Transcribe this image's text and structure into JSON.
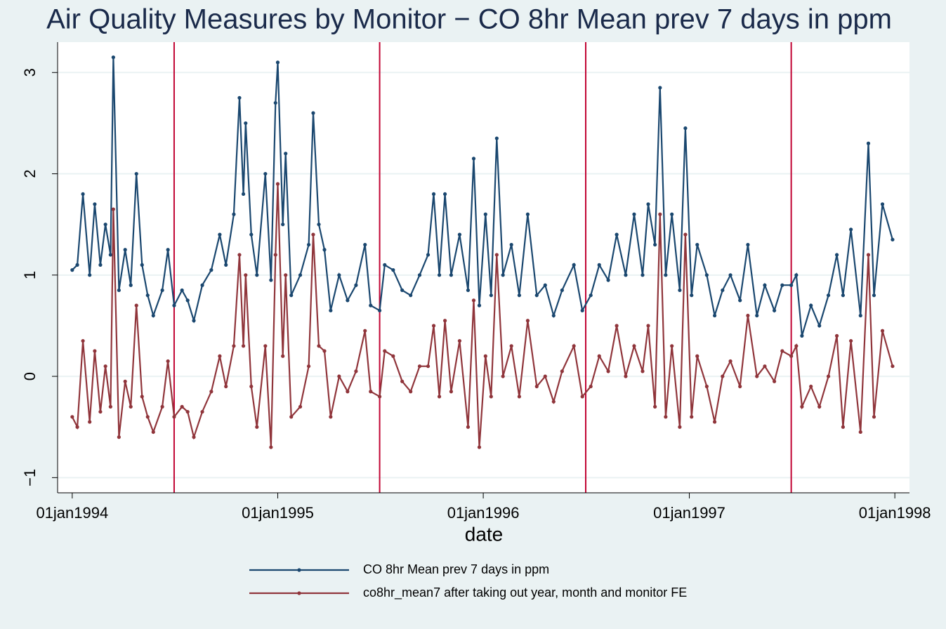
{
  "chart_data": {
    "type": "line",
    "title": "Air Quality Measures by Monitor − CO 8hr Mean prev 7 days in ppm",
    "x_label": "date",
    "x": [
      "1994-01-01",
      "1994-01-10",
      "1994-01-20",
      "1994-02-01",
      "1994-02-10",
      "1994-02-20",
      "1994-03-01",
      "1994-03-10",
      "1994-03-15",
      "1994-03-25",
      "1994-04-05",
      "1994-04-15",
      "1994-04-25",
      "1994-05-05",
      "1994-05-15",
      "1994-05-25",
      "1994-06-10",
      "1994-06-20",
      "1994-07-01",
      "1994-07-15",
      "1994-07-25",
      "1994-08-05",
      "1994-08-20",
      "1994-09-05",
      "1994-09-20",
      "1994-10-01",
      "1994-10-15",
      "1994-10-25",
      "1994-11-01",
      "1994-11-05",
      "1994-11-15",
      "1994-11-25",
      "1994-12-10",
      "1994-12-20",
      "1994-12-28",
      "1995-01-01",
      "1995-01-10",
      "1995-01-15",
      "1995-01-25",
      "1995-02-10",
      "1995-02-25",
      "1995-03-05",
      "1995-03-15",
      "1995-03-25",
      "1995-04-05",
      "1995-04-20",
      "1995-05-05",
      "1995-05-20",
      "1995-06-05",
      "1995-06-15",
      "1995-07-01",
      "1995-07-10",
      "1995-07-25",
      "1995-08-10",
      "1995-08-25",
      "1995-09-10",
      "1995-09-25",
      "1995-10-05",
      "1995-10-15",
      "1995-10-25",
      "1995-11-05",
      "1995-11-20",
      "1995-12-05",
      "1995-12-15",
      "1995-12-25",
      "1996-01-05",
      "1996-01-15",
      "1996-01-25",
      "1996-02-05",
      "1996-02-20",
      "1996-03-05",
      "1996-03-20",
      "1996-04-05",
      "1996-04-20",
      "1996-05-05",
      "1996-05-20",
      "1996-06-10",
      "1996-06-25",
      "1996-07-10",
      "1996-07-25",
      "1996-08-10",
      "1996-08-25",
      "1996-09-10",
      "1996-09-25",
      "1996-10-10",
      "1996-10-20",
      "1996-11-01",
      "1996-11-10",
      "1996-11-20",
      "1996-12-01",
      "1996-12-15",
      "1996-12-25",
      "1997-01-05",
      "1997-01-15",
      "1997-02-01",
      "1997-02-15",
      "1997-03-01",
      "1997-03-15",
      "1997-04-01",
      "1997-04-15",
      "1997-05-01",
      "1997-05-15",
      "1997-06-01",
      "1997-06-15",
      "1997-07-01",
      "1997-07-10",
      "1997-07-20",
      "1997-08-05",
      "1997-08-20",
      "1997-09-05",
      "1997-09-20",
      "1997-10-01",
      "1997-10-15",
      "1997-11-01",
      "1997-11-15",
      "1997-11-25",
      "1997-12-10",
      "1997-12-28"
    ],
    "series": [
      {
        "name": "CO 8hr Mean prev 7 days in ppm",
        "color": "#1a476f",
        "values": [
          1.05,
          1.1,
          1.8,
          1.0,
          1.7,
          1.1,
          1.5,
          1.2,
          3.15,
          0.85,
          1.25,
          0.9,
          2.0,
          1.1,
          0.8,
          0.6,
          0.85,
          1.25,
          0.7,
          0.85,
          0.75,
          0.55,
          0.9,
          1.05,
          1.4,
          1.1,
          1.6,
          2.75,
          1.8,
          2.5,
          1.4,
          1.0,
          2.0,
          0.95,
          2.7,
          3.1,
          1.5,
          2.2,
          0.8,
          1.0,
          1.3,
          2.6,
          1.5,
          1.25,
          0.65,
          1.0,
          0.75,
          0.9,
          1.3,
          0.7,
          0.65,
          1.1,
          1.05,
          0.85,
          0.8,
          1.0,
          1.2,
          1.8,
          1.0,
          1.8,
          1.0,
          1.4,
          0.85,
          2.15,
          0.7,
          1.6,
          0.8,
          2.35,
          1.0,
          1.3,
          0.8,
          1.6,
          0.8,
          0.9,
          0.6,
          0.85,
          1.1,
          0.65,
          0.8,
          1.1,
          0.95,
          1.4,
          1.0,
          1.6,
          1.0,
          1.7,
          1.3,
          2.85,
          1.0,
          1.6,
          0.85,
          2.45,
          0.8,
          1.3,
          1.0,
          0.6,
          0.85,
          1.0,
          0.75,
          1.3,
          0.6,
          0.9,
          0.65,
          0.9,
          0.9,
          1.0,
          0.4,
          0.7,
          0.5,
          0.8,
          1.2,
          0.8,
          1.45,
          0.6,
          2.3,
          0.8,
          1.7,
          1.35
        ]
      },
      {
        "name": "co8hr_mean7 after taking out year, month and monitor FE",
        "color": "#90353b",
        "values": [
          -0.4,
          -0.5,
          0.35,
          -0.45,
          0.25,
          -0.35,
          0.1,
          -0.3,
          1.65,
          -0.6,
          -0.05,
          -0.3,
          0.7,
          -0.2,
          -0.4,
          -0.55,
          -0.3,
          0.15,
          -0.4,
          -0.3,
          -0.35,
          -0.6,
          -0.35,
          -0.15,
          0.2,
          -0.1,
          0.3,
          1.2,
          0.3,
          1.0,
          -0.1,
          -0.5,
          0.3,
          -0.7,
          1.2,
          1.9,
          0.2,
          1.0,
          -0.4,
          -0.3,
          0.1,
          1.4,
          0.3,
          0.25,
          -0.4,
          0.0,
          -0.15,
          0.05,
          0.45,
          -0.15,
          -0.2,
          0.25,
          0.2,
          -0.05,
          -0.15,
          0.1,
          0.1,
          0.5,
          -0.2,
          0.55,
          -0.15,
          0.35,
          -0.5,
          0.75,
          -0.7,
          0.2,
          -0.2,
          1.2,
          0.0,
          0.3,
          -0.2,
          0.55,
          -0.1,
          0.0,
          -0.25,
          0.05,
          0.3,
          -0.2,
          -0.1,
          0.2,
          0.05,
          0.5,
          0.0,
          0.3,
          0.05,
          0.5,
          -0.3,
          1.6,
          -0.4,
          0.3,
          -0.5,
          1.4,
          -0.4,
          0.2,
          -0.1,
          -0.45,
          0.0,
          0.15,
          -0.1,
          0.6,
          0.0,
          0.1,
          -0.05,
          0.25,
          0.2,
          0.3,
          -0.3,
          -0.1,
          -0.3,
          0.0,
          0.4,
          -0.5,
          0.35,
          -0.55,
          1.2,
          -0.4,
          0.45,
          0.1
        ]
      }
    ],
    "xlim": [
      "1993-12-06",
      "1998-01-27"
    ],
    "xticks": [
      {
        "value": "1994-01-01",
        "label": "01jan1994"
      },
      {
        "value": "1995-01-01",
        "label": "01jan1995"
      },
      {
        "value": "1996-01-01",
        "label": "01jan1996"
      },
      {
        "value": "1997-01-01",
        "label": "01jan1997"
      },
      {
        "value": "1998-01-01",
        "label": "01jan1998"
      }
    ],
    "xlines": [
      "1994-07-01",
      "1995-07-01",
      "1996-07-01",
      "1997-07-01"
    ],
    "xline_color": "#c10534",
    "ylim": [
      -1.15,
      3.3
    ],
    "yticks": [
      {
        "value": -1,
        "label": "−1"
      },
      0,
      1,
      2,
      3
    ],
    "grid": true,
    "legend": "bottom"
  }
}
